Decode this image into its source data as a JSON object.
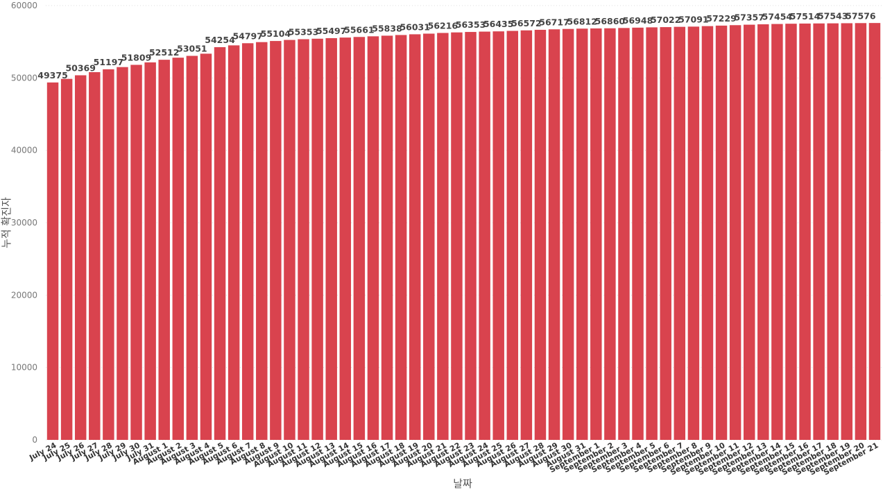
{
  "chart_data": {
    "type": "bar",
    "x_label": "날짜",
    "y_label": "누적 확진자",
    "categories": [
      "July 24",
      "July 25",
      "July 26",
      "July 27",
      "July 28",
      "July 29",
      "July 30",
      "July 31",
      "August 1",
      "August 2",
      "August 3",
      "August 4",
      "August 5",
      "August 6",
      "August 7",
      "August 8",
      "August 9",
      "August 10",
      "August 11",
      "August 12",
      "August 13",
      "August 14",
      "August 15",
      "August 16",
      "August 17",
      "August 18",
      "August 19",
      "August 20",
      "August 21",
      "August 22",
      "August 23",
      "August 24",
      "August 25",
      "August 26",
      "August 27",
      "August 28",
      "August 29",
      "August 30",
      "August 31",
      "September 1",
      "September 2",
      "September 3",
      "September 4",
      "September 5",
      "September 6",
      "September 7",
      "September 8",
      "September 9",
      "September 10",
      "September 11",
      "September 12",
      "September 13",
      "September 14",
      "September 15",
      "September 16",
      "September 17",
      "September 18",
      "September 19",
      "September 20",
      "September 21"
    ],
    "values": [
      49375,
      49870,
      50369,
      50800,
      51197,
      51500,
      51809,
      52150,
      52512,
      52800,
      53051,
      53350,
      54254,
      54500,
      54797,
      54950,
      55104,
      55250,
      55353,
      55420,
      55497,
      55580,
      55661,
      55750,
      55838,
      55930,
      56031,
      56120,
      56216,
      56290,
      56353,
      56400,
      56435,
      56500,
      56572,
      56650,
      56717,
      56770,
      56812,
      56840,
      56860,
      56900,
      56948,
      56990,
      57022,
      57060,
      57091,
      57160,
      57229,
      57290,
      57357,
      57410,
      57454,
      57490,
      57514,
      57530,
      57543,
      57560,
      57576,
      57590
    ],
    "color": "#d9434e",
    "ylim": [
      0,
      60000
    ],
    "yticks": [
      0,
      10000,
      20000,
      30000,
      40000,
      50000,
      60000
    ],
    "grid": true
  }
}
